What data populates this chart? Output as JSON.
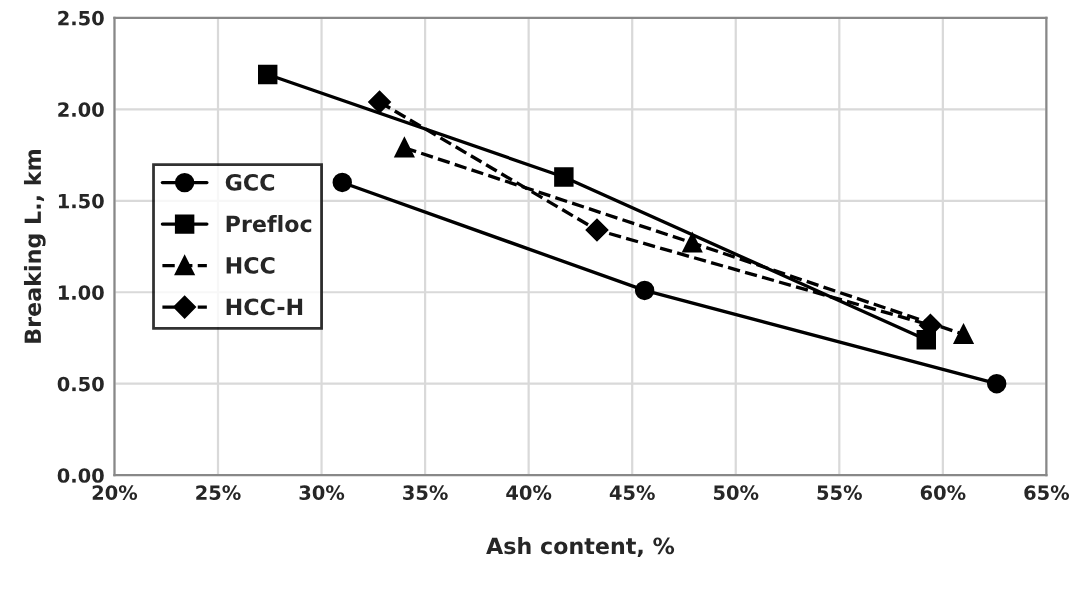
{
  "chart_data": {
    "type": "line",
    "xlabel": "Ash content, %",
    "ylabel": "Breaking L., km",
    "xlim": [
      20,
      65
    ],
    "ylim": [
      0,
      2.5
    ],
    "xticks": [
      {
        "value": 20,
        "label": "20%"
      },
      {
        "value": 25,
        "label": "25%"
      },
      {
        "value": 30,
        "label": "30%"
      },
      {
        "value": 35,
        "label": "35%"
      },
      {
        "value": 40,
        "label": "40%"
      },
      {
        "value": 45,
        "label": "45%"
      },
      {
        "value": 50,
        "label": "50%"
      },
      {
        "value": 55,
        "label": "55%"
      },
      {
        "value": 60,
        "label": "60%"
      },
      {
        "value": 65,
        "label": "65%"
      }
    ],
    "yticks": [
      {
        "value": 0,
        "label": "0.00"
      },
      {
        "value": 0.5,
        "label": "0.50"
      },
      {
        "value": 1,
        "label": "1.00"
      },
      {
        "value": 1.5,
        "label": "1.50"
      },
      {
        "value": 2,
        "label": "2.00"
      },
      {
        "value": 2.5,
        "label": "2.50"
      }
    ],
    "grid": true,
    "legend": "left",
    "series": [
      {
        "name": "GCC",
        "color": "#000000",
        "marker": "circle",
        "line_style": "solid",
        "x": [
          31.0,
          45.6,
          62.6
        ],
        "values": [
          1.6,
          1.01,
          0.5
        ]
      },
      {
        "name": "Prefloc",
        "color": "#000000",
        "marker": "square",
        "line_style": "solid",
        "x": [
          27.4,
          41.7,
          59.2
        ],
        "values": [
          2.19,
          1.63,
          0.74
        ]
      },
      {
        "name": "HCC",
        "color": "#000000",
        "marker": "triangle",
        "line_style": "dashed",
        "x": [
          34.0,
          47.9,
          61.0
        ],
        "values": [
          1.79,
          1.27,
          0.77
        ]
      },
      {
        "name": "HCC-H",
        "color": "#000000",
        "marker": "diamond",
        "line_style": "dashed",
        "x": [
          32.8,
          43.3,
          59.4
        ],
        "values": [
          2.04,
          1.34,
          0.82
        ]
      }
    ]
  }
}
